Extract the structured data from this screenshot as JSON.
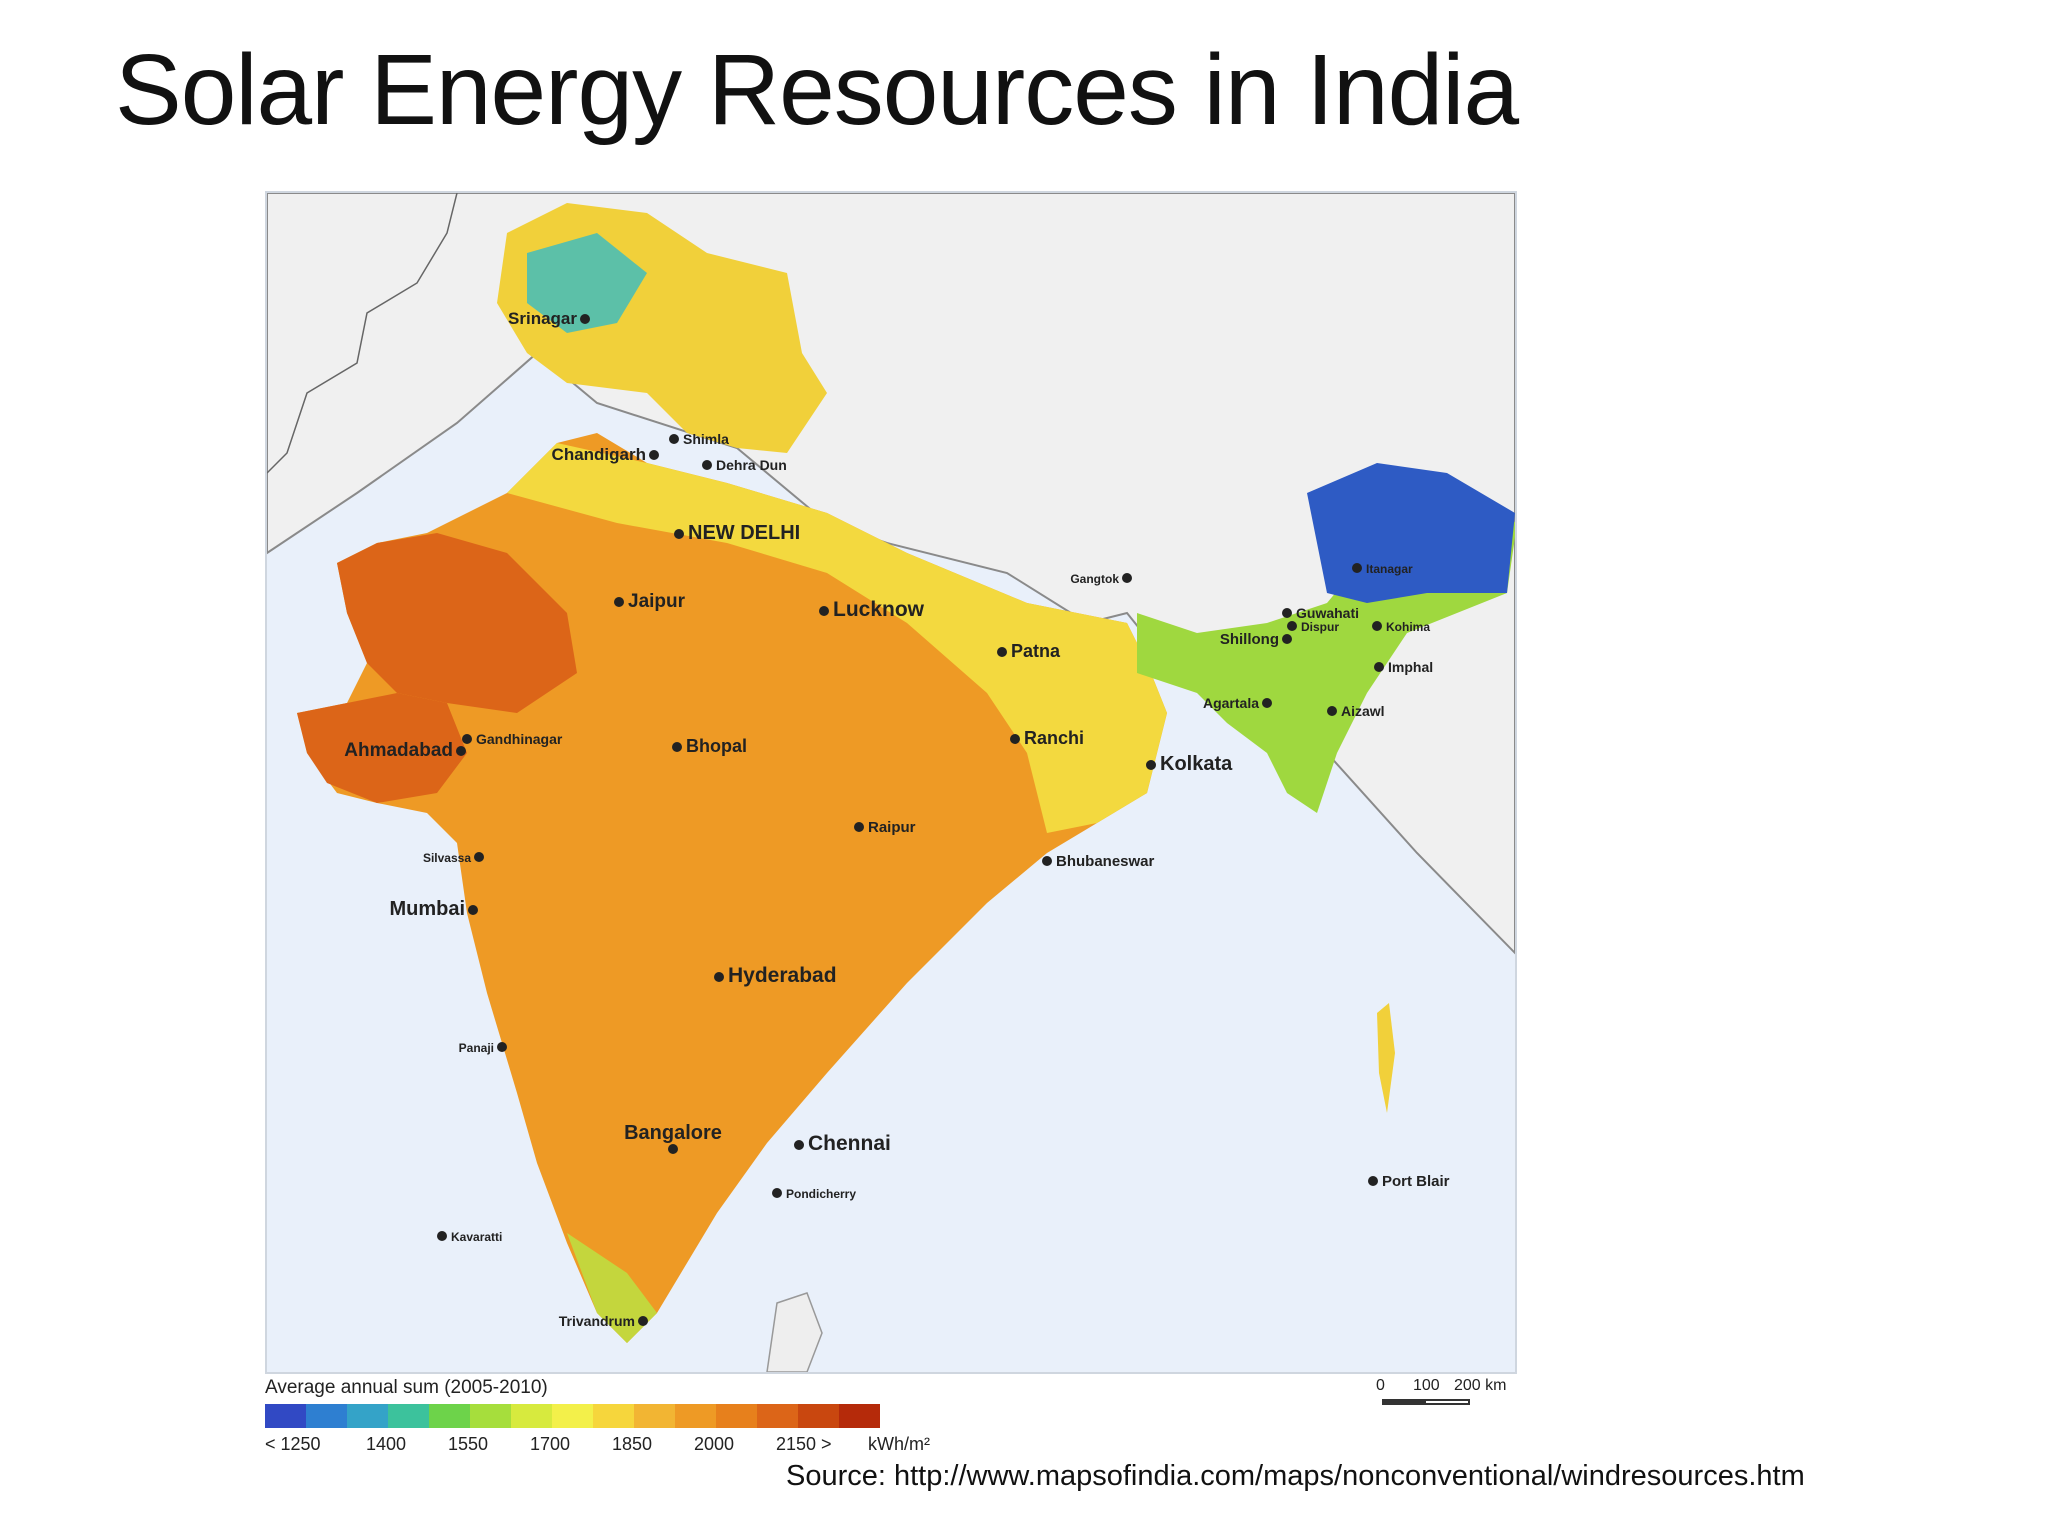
{
  "title": "Solar Energy Resources in India",
  "legend": {
    "title": "Average annual sum (2005-2010)",
    "ticks": [
      "< 1250",
      "1400",
      "1550",
      "1700",
      "1850",
      "2000",
      "2150 >"
    ],
    "unit": "kWh/m²",
    "colors": [
      "#3149c4",
      "#2e7fd1",
      "#34a3c8",
      "#3cc29c",
      "#6dd34a",
      "#a6de3c",
      "#d7ea3e",
      "#f3f04a",
      "#f6d63c",
      "#f2b533",
      "#ee9a25",
      "#e7801c",
      "#dc6518",
      "#c9470f",
      "#b52a0a"
    ]
  },
  "scale": {
    "labels": [
      "0",
      "100",
      "200 km"
    ]
  },
  "cities": [
    {
      "name": "Srinagar"
    },
    {
      "name": "Shimla"
    },
    {
      "name": "Chandigarh"
    },
    {
      "name": "Dehra Dun"
    },
    {
      "name": "NEW DELHI"
    },
    {
      "name": "Jaipur"
    },
    {
      "name": "Lucknow"
    },
    {
      "name": "Patna"
    },
    {
      "name": "Gangtok"
    },
    {
      "name": "Itanagar"
    },
    {
      "name": "Guwahati"
    },
    {
      "name": "Dispur"
    },
    {
      "name": "Kohima"
    },
    {
      "name": "Shillong"
    },
    {
      "name": "Imphal"
    },
    {
      "name": "Agartala"
    },
    {
      "name": "Aizawl"
    },
    {
      "name": "Gandhinagar"
    },
    {
      "name": "Ahmadabad"
    },
    {
      "name": "Bhopal"
    },
    {
      "name": "Ranchi"
    },
    {
      "name": "Kolkata"
    },
    {
      "name": "Raipur"
    },
    {
      "name": "Silvassa"
    },
    {
      "name": "Bhubaneswar"
    },
    {
      "name": "Mumbai"
    },
    {
      "name": "Hyderabad"
    },
    {
      "name": "Panaji"
    },
    {
      "name": "Bangalore"
    },
    {
      "name": "Chennai"
    },
    {
      "name": "Pondicherry"
    },
    {
      "name": "Port Blair"
    },
    {
      "name": "Kavaratti"
    },
    {
      "name": "Trivandrum"
    }
  ],
  "source": "Source: http://www.mapsofindia.com/maps/nonconventional/windresources.htm"
}
